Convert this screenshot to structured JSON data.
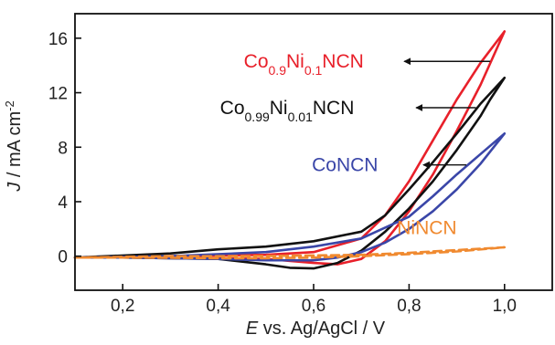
{
  "chart_data": {
    "type": "line",
    "title": "",
    "xlabel_italic": "E",
    "xlabel_rest": " vs. Ag/AgCl / V",
    "ylabel_italic": "J",
    "ylabel_rest": " / mA cm",
    "ylabel_sup": "-2",
    "xlim": [
      0.1,
      1.1
    ],
    "ylim": [
      -2.5,
      17.8
    ],
    "x_ticks": [
      0.2,
      0.4,
      0.6,
      0.8,
      1.0
    ],
    "x_tick_labels": [
      "0,2",
      "0,4",
      "0,6",
      "0,8",
      "1,0"
    ],
    "y_ticks": [
      0,
      4,
      8,
      12,
      16
    ],
    "y_tick_labels": [
      "0",
      "4",
      "8",
      "12",
      "16"
    ],
    "grid": false,
    "series": [
      {
        "name_parts": [
          [
            "Co",
            ""
          ],
          [
            "0.9",
            "sub"
          ],
          [
            "Ni",
            ""
          ],
          [
            "0.1",
            "sub"
          ],
          [
            "NCN",
            ""
          ]
        ],
        "color": "#e8202a",
        "dashed": false,
        "forward": [
          [
            0.1,
            -0.1
          ],
          [
            0.3,
            0.0
          ],
          [
            0.5,
            0.1
          ],
          [
            0.6,
            0.3
          ],
          [
            0.7,
            1.3
          ],
          [
            0.75,
            3.0
          ],
          [
            0.8,
            5.5
          ],
          [
            0.85,
            8.5
          ],
          [
            0.9,
            11.5
          ],
          [
            0.95,
            14.2
          ],
          [
            1.0,
            16.5
          ]
        ],
        "reverse": [
          [
            1.0,
            16.5
          ],
          [
            0.95,
            12.6
          ],
          [
            0.9,
            9.2
          ],
          [
            0.85,
            6.0
          ],
          [
            0.8,
            3.3
          ],
          [
            0.75,
            1.1
          ],
          [
            0.7,
            -0.2
          ],
          [
            0.65,
            -0.6
          ],
          [
            0.6,
            -0.5
          ],
          [
            0.5,
            -0.2
          ],
          [
            0.3,
            -0.1
          ],
          [
            0.1,
            -0.1
          ]
        ]
      },
      {
        "name_parts": [
          [
            "Co",
            ""
          ],
          [
            "0.99",
            "sub"
          ],
          [
            "Ni",
            ""
          ],
          [
            "0.01",
            "sub"
          ],
          [
            "NCN",
            ""
          ]
        ],
        "color": "#111111",
        "dashed": false,
        "forward": [
          [
            0.1,
            -0.1
          ],
          [
            0.3,
            0.2
          ],
          [
            0.4,
            0.5
          ],
          [
            0.5,
            0.7
          ],
          [
            0.6,
            1.1
          ],
          [
            0.7,
            1.8
          ],
          [
            0.75,
            3.0
          ],
          [
            0.8,
            4.9
          ],
          [
            0.85,
            6.9
          ],
          [
            0.9,
            9.0
          ],
          [
            0.95,
            11.2
          ],
          [
            1.0,
            13.1
          ]
        ],
        "reverse": [
          [
            1.0,
            13.1
          ],
          [
            0.97,
            11.5
          ],
          [
            0.95,
            10.3
          ],
          [
            0.9,
            7.8
          ],
          [
            0.85,
            5.5
          ],
          [
            0.8,
            3.5
          ],
          [
            0.75,
            1.8
          ],
          [
            0.7,
            0.4
          ],
          [
            0.65,
            -0.5
          ],
          [
            0.6,
            -0.9
          ],
          [
            0.55,
            -0.85
          ],
          [
            0.5,
            -0.6
          ],
          [
            0.4,
            -0.2
          ],
          [
            0.2,
            -0.1
          ],
          [
            0.1,
            -0.1
          ]
        ]
      },
      {
        "name_parts": [
          [
            "CoNCN",
            ""
          ]
        ],
        "color": "#3a46a8",
        "dashed": false,
        "forward": [
          [
            0.1,
            -0.1
          ],
          [
            0.3,
            0.0
          ],
          [
            0.5,
            0.3
          ],
          [
            0.6,
            0.7
          ],
          [
            0.7,
            1.3
          ],
          [
            0.8,
            2.9
          ],
          [
            0.85,
            4.4
          ],
          [
            0.9,
            6.0
          ],
          [
            0.95,
            7.5
          ],
          [
            1.0,
            9.0
          ]
        ],
        "reverse": [
          [
            1.0,
            9.0
          ],
          [
            0.95,
            6.8
          ],
          [
            0.9,
            4.9
          ],
          [
            0.85,
            3.3
          ],
          [
            0.8,
            2.0
          ],
          [
            0.75,
            1.0
          ],
          [
            0.7,
            0.3
          ],
          [
            0.65,
            -0.1
          ],
          [
            0.6,
            -0.3
          ],
          [
            0.5,
            -0.3
          ],
          [
            0.4,
            -0.2
          ],
          [
            0.2,
            -0.1
          ],
          [
            0.1,
            -0.1
          ]
        ]
      },
      {
        "name_parts": [
          [
            "NiNCN",
            ""
          ]
        ],
        "color": "#f08a30",
        "dashed": true,
        "forward": [
          [
            0.1,
            -0.1
          ],
          [
            0.2,
            -0.05
          ],
          [
            0.3,
            0.0
          ],
          [
            0.4,
            0.0
          ],
          [
            0.5,
            0.02
          ],
          [
            0.6,
            0.05
          ],
          [
            0.7,
            0.1
          ],
          [
            0.8,
            0.25
          ],
          [
            0.9,
            0.45
          ],
          [
            1.0,
            0.65
          ]
        ],
        "reverse": [
          [
            1.0,
            0.65
          ],
          [
            0.9,
            0.35
          ],
          [
            0.8,
            0.15
          ],
          [
            0.7,
            0.0
          ],
          [
            0.6,
            -0.1
          ],
          [
            0.5,
            -0.15
          ],
          [
            0.4,
            -0.15
          ],
          [
            0.3,
            -0.12
          ],
          [
            0.2,
            -0.1
          ],
          [
            0.1,
            -0.1
          ]
        ]
      }
    ],
    "annotations": [
      {
        "series_index": 0,
        "text_anchor": [
          0.705,
          14.3
        ],
        "arrow_from": [
          0.97,
          14.3
        ],
        "arrow_to": [
          0.79,
          14.3
        ]
      },
      {
        "series_index": 1,
        "text_anchor": [
          0.685,
          10.9
        ],
        "arrow_from": [
          0.94,
          10.9
        ],
        "arrow_to": [
          0.815,
          10.9
        ]
      },
      {
        "series_index": 2,
        "text_anchor": [
          0.735,
          6.7
        ],
        "arrow_from": [
          0.92,
          6.7
        ],
        "arrow_to": [
          0.83,
          6.7
        ]
      },
      {
        "series_index": 3,
        "text_anchor": [
          0.9,
          2.1
        ],
        "arrow_from": null,
        "arrow_to": null
      }
    ]
  }
}
